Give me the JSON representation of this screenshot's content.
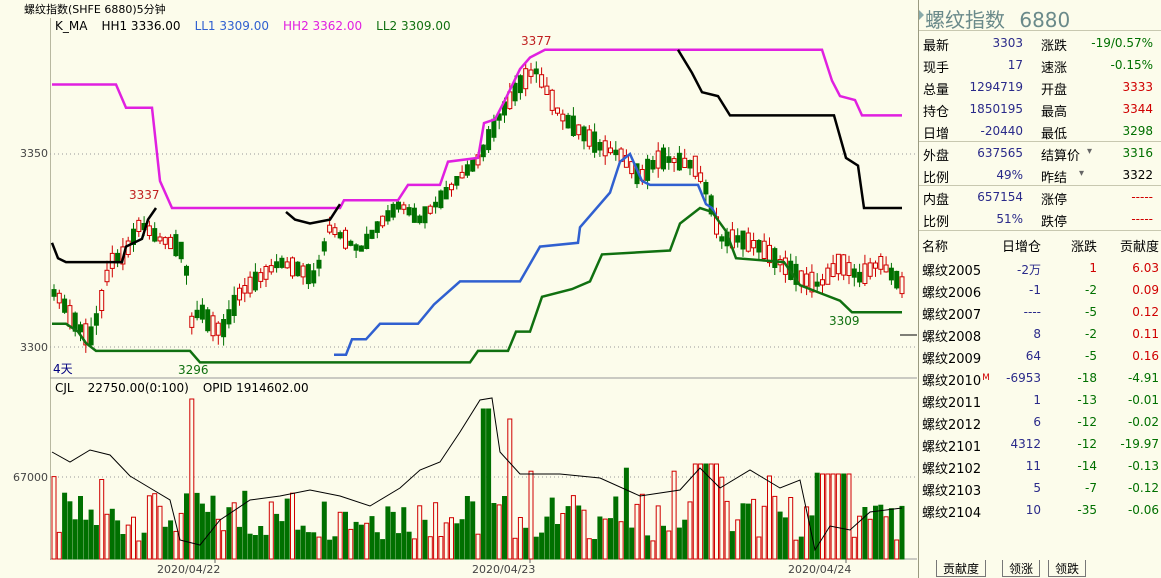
{
  "title": "螺纹指数(SHFE 6880)5分钟",
  "price_legend": {
    "name": "K_MA",
    "hh1": "HH1 3336.00",
    "ll1": "LL1 3309.00",
    "hh2": "HH2 3362.00",
    "ll2": "LL2 3309.00"
  },
  "price_axis": {
    "top": "3350",
    "bottom": "3300"
  },
  "annotations": {
    "high": "3377",
    "a3337": "3337",
    "a3296": "3296",
    "a3309": "3309",
    "days": "4天"
  },
  "volume_legend": {
    "name": "CJL",
    "cjl": "22750.00(0:100)",
    "opid": "OPID 1914602.00"
  },
  "volume_axis": {
    "mid": "67000"
  },
  "dates": [
    "2020/04/22",
    "2020/04/23",
    "2020/04/24"
  ],
  "colors": {
    "up": "#d00000",
    "down": "#007000",
    "hh2": "#e020e0",
    "ll1": "#3060d0",
    "ll2": "#107010",
    "hh1": "#000000",
    "bg": "#fcfceb"
  },
  "side": {
    "name": "螺纹指数",
    "code": "6880",
    "quote_rows": [
      {
        "l1": "最新",
        "v1": "3303",
        "c1": "blue",
        "l2": "涨跌",
        "v2": "-19/0.57%",
        "c2": "down"
      },
      {
        "l1": "现手",
        "v1": "17",
        "c1": "blue",
        "l2": "速涨",
        "v2": "-0.15%",
        "c2": "down"
      },
      {
        "l1": "总量",
        "v1": "1294719",
        "c1": "blue",
        "l2": "开盘",
        "v2": "3333",
        "c2": "up"
      },
      {
        "l1": "持仓",
        "v1": "1850195",
        "c1": "blue",
        "l2": "最高",
        "v2": "3344",
        "c2": "up"
      },
      {
        "l1": "日增",
        "v1": "-20440",
        "c1": "blue",
        "l2": "最低",
        "v2": "3298",
        "c2": "down"
      },
      {
        "l1": "外盘",
        "v1": "637565",
        "c1": "blue",
        "l2": "结算价",
        "v2": "3316",
        "c2": "down"
      },
      {
        "l1": "比例",
        "v1": "49%",
        "c1": "blue",
        "l2": "昨结",
        "v2": "3322",
        "c2": "plain"
      },
      {
        "l1": "内盘",
        "v1": "657154",
        "c1": "blue",
        "l2": "涨停",
        "v2": "-----",
        "c2": "up"
      },
      {
        "l1": "比例",
        "v1": "51%",
        "c1": "blue",
        "l2": "跌停",
        "v2": "-----",
        "c2": "up"
      }
    ],
    "contracts_header": [
      "名称",
      "日增仓",
      "涨跌",
      "贡献度"
    ],
    "contracts": [
      {
        "name": "螺纹2005",
        "mark": "",
        "oi": "-2万",
        "chg": "1",
        "chg_c": "up",
        "contrib": "6.03",
        "con_c": "up"
      },
      {
        "name": "螺纹2006",
        "mark": "",
        "oi": "-1",
        "chg": "-2",
        "chg_c": "down",
        "contrib": "0.09",
        "con_c": "up"
      },
      {
        "name": "螺纹2007",
        "mark": "",
        "oi": "----",
        "chg": "-5",
        "chg_c": "down",
        "contrib": "0.12",
        "con_c": "up"
      },
      {
        "name": "螺纹2008",
        "mark": "",
        "oi": "8",
        "chg": "-2",
        "chg_c": "down",
        "contrib": "0.11",
        "con_c": "up"
      },
      {
        "name": "螺纹2009",
        "mark": "",
        "oi": "64",
        "chg": "-5",
        "chg_c": "down",
        "contrib": "0.16",
        "con_c": "up"
      },
      {
        "name": "螺纹2010",
        "mark": "M",
        "oi": "-6953",
        "chg": "-18",
        "chg_c": "down",
        "contrib": "-4.91",
        "con_c": "down"
      },
      {
        "name": "螺纹2011",
        "mark": "",
        "oi": "1",
        "chg": "-13",
        "chg_c": "down",
        "contrib": "-0.01",
        "con_c": "down"
      },
      {
        "name": "螺纹2012",
        "mark": "",
        "oi": "6",
        "chg": "-12",
        "chg_c": "down",
        "contrib": "-0.02",
        "con_c": "down"
      },
      {
        "name": "螺纹2101",
        "mark": "",
        "oi": "4312",
        "chg": "-12",
        "chg_c": "down",
        "contrib": "-19.97",
        "con_c": "down"
      },
      {
        "name": "螺纹2102",
        "mark": "",
        "oi": "11",
        "chg": "-14",
        "chg_c": "down",
        "contrib": "-0.13",
        "con_c": "down"
      },
      {
        "name": "螺纹2103",
        "mark": "",
        "oi": "5",
        "chg": "-7",
        "chg_c": "down",
        "contrib": "-0.12",
        "con_c": "down"
      },
      {
        "name": "螺纹2104",
        "mark": "",
        "oi": "10",
        "chg": "-35",
        "chg_c": "down",
        "contrib": "-0.06",
        "con_c": "down"
      }
    ],
    "tabs": [
      "贡献度",
      "领涨",
      "领跌"
    ]
  }
}
